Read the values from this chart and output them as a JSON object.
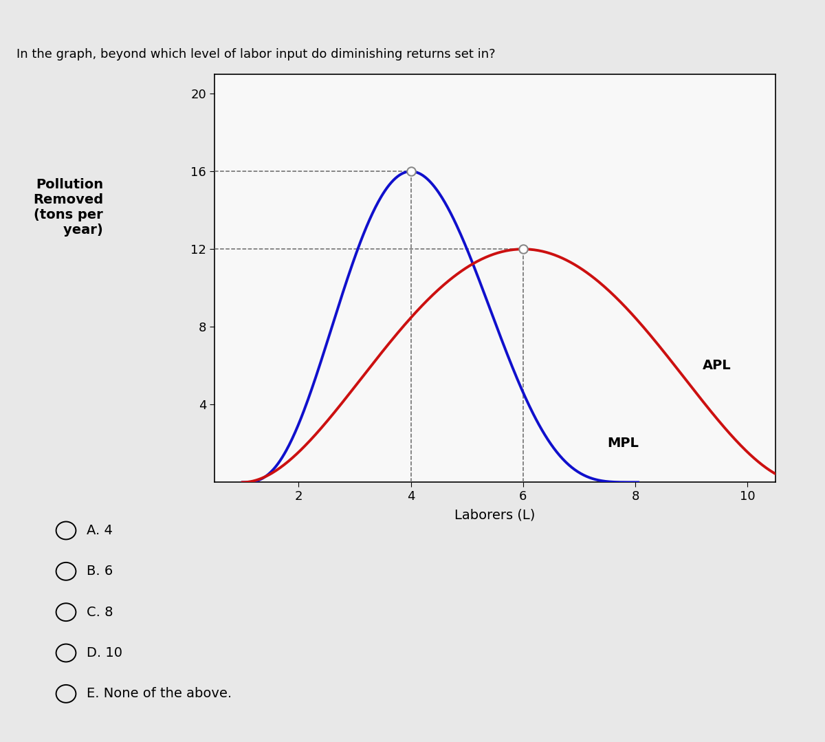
{
  "title": "In the graph, beyond which level of labor input do diminishing returns set in?",
  "xlabel": "Laborers (L)",
  "ylim": [
    0,
    21
  ],
  "xlim": [
    0.5,
    10.5
  ],
  "yticks": [
    4,
    8,
    12,
    16,
    20
  ],
  "xticks": [
    2,
    4,
    6,
    8,
    10
  ],
  "mpl_peak_x": 4,
  "mpl_peak_y": 16,
  "apl_peak_x": 6,
  "apl_peak_y": 12,
  "mpl_color": "#1010CC",
  "apl_color": "#CC1010",
  "bg_color": "#e8e8e8",
  "plot_bg_color": "#f8f8f8",
  "dashed_color": "#666666",
  "ylabel_text": "Pollution\nRemoved\n(tons per\n     year)",
  "choices": [
    "A. 4",
    "B. 6",
    "C. 8",
    "D. 10",
    "E. None of the above."
  ]
}
